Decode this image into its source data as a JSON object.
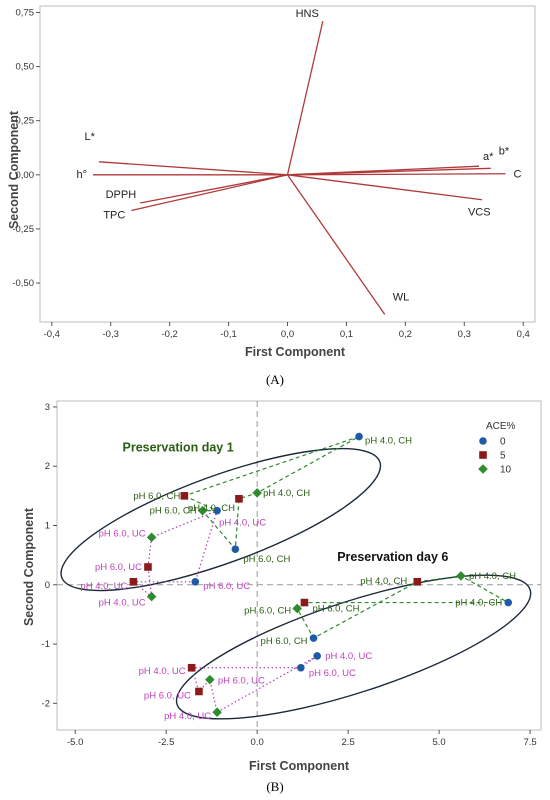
{
  "figure": {
    "caption_a": "(A)",
    "caption_b": "(B)"
  },
  "chart_data": [
    {
      "type": "line",
      "subtype": "biplot-loadings",
      "xlabel": "First Component",
      "ylabel": "Second Component",
      "xlim": [
        -0.42,
        0.42
      ],
      "ylim": [
        -0.68,
        0.78
      ],
      "xticks": [
        -0.4,
        -0.3,
        -0.2,
        -0.1,
        0.0,
        0.1,
        0.2,
        0.3,
        0.4
      ],
      "xtick_labels": [
        "-0,4",
        "-0,3",
        "-0,2",
        "-0,1",
        "0,0",
        "0,1",
        "0,2",
        "0,3",
        "0,4"
      ],
      "yticks": [
        -0.5,
        -0.25,
        0.0,
        0.25,
        0.5,
        0.75
      ],
      "ytick_labels": [
        "-0,50",
        "-0,25",
        "0,00",
        "0,25",
        "0,50",
        "0,75"
      ],
      "grid": false,
      "reference_lines": {
        "x": 0,
        "y": 0
      },
      "line_color": "#b03a3a",
      "vectors": [
        {
          "name": "HNS",
          "x": 0.06,
          "y": 0.71
        },
        {
          "name": "a*",
          "x": 0.325,
          "y": 0.04
        },
        {
          "name": "b*",
          "x": 0.345,
          "y": 0.03
        },
        {
          "name": "C",
          "x": 0.37,
          "y": 0.005
        },
        {
          "name": "VCS",
          "x": 0.33,
          "y": -0.115
        },
        {
          "name": "WL",
          "x": 0.165,
          "y": -0.645
        },
        {
          "name": "L*",
          "x": -0.32,
          "y": 0.06
        },
        {
          "name": "h°",
          "x": -0.33,
          "y": 0.0
        },
        {
          "name": "DPPH",
          "x": -0.25,
          "y": -0.13
        },
        {
          "name": "TPC",
          "x": -0.265,
          "y": -0.165
        }
      ]
    },
    {
      "type": "scatter",
      "xlabel": "First Component",
      "ylabel": "Second Component",
      "xlim": [
        -5.5,
        7.8
      ],
      "ylim": [
        -2.45,
        3.1
      ],
      "xticks": [
        -5.0,
        -2.5,
        0.0,
        2.5,
        5.0,
        7.5
      ],
      "xtick_labels": [
        "-5.0",
        "-2.5",
        "0.0",
        "2.5",
        "5.0",
        "7.5"
      ],
      "yticks": [
        -2,
        -1,
        0,
        1,
        2,
        3
      ],
      "ytick_labels": [
        "-2",
        "-1",
        "0",
        "1",
        "2",
        "3"
      ],
      "grid": false,
      "reference_lines": {
        "x": 0,
        "y": 0
      },
      "legend": {
        "title": "ACE%",
        "placement": "top-right"
      },
      "series": [
        {
          "name": "0",
          "color": "#1f5aa6",
          "marker": "circle"
        },
        {
          "name": "5",
          "color": "#8b1a1a",
          "marker": "square"
        },
        {
          "name": "10",
          "color": "#2e8b2e",
          "marker": "diamond"
        }
      ],
      "groups": [
        {
          "title": "Preservation day 1",
          "title_color": "#2a5e12",
          "ellipse": {
            "cx": -1.0,
            "cy": 1.1,
            "rx": 4.65,
            "ry": 1.2,
            "angle_deg": 20
          }
        },
        {
          "title": "Preservation day 6",
          "title_color": "#111111",
          "ellipse": {
            "cx": 2.65,
            "cy": -1.05,
            "rx": 5.1,
            "ry": 1.25,
            "angle_deg": 18
          }
        }
      ],
      "connection_styles": {
        "CH": {
          "color": "#2e8b2e",
          "dash": "dashed"
        },
        "UC": {
          "color": "#b040b0",
          "dash": "dotted"
        }
      },
      "points": [
        {
          "series": "0",
          "x": 2.8,
          "y": 2.5,
          "label": "pH 4.0, CH"
        },
        {
          "series": "0",
          "x": -0.6,
          "y": 0.6,
          "label": "pH 6.0, CH"
        },
        {
          "series": "0",
          "x": -1.1,
          "y": 1.25,
          "label": "pH 4.0, UC"
        },
        {
          "series": "0",
          "x": -1.7,
          "y": 0.05,
          "label": "pH 6.0, UC"
        },
        {
          "series": "5",
          "x": -2.0,
          "y": 1.5,
          "label": "pH 6.0, CH"
        },
        {
          "series": "5",
          "x": -0.5,
          "y": 1.45,
          "label": "pH 4.0, CH"
        },
        {
          "series": "5",
          "x": -3.0,
          "y": 0.3,
          "label": "pH 6.0, UC"
        },
        {
          "series": "5",
          "x": -3.4,
          "y": 0.05,
          "label": "pH 4.0, UC"
        },
        {
          "series": "10",
          "x": 0.0,
          "y": 1.55,
          "label": "pH 4.0, CH"
        },
        {
          "series": "10",
          "x": -1.5,
          "y": 1.25,
          "label": "pH 6.0, CH"
        },
        {
          "series": "10",
          "x": -2.9,
          "y": 0.8,
          "label": "pH 6.0, UC"
        },
        {
          "series": "10",
          "x": -2.9,
          "y": -0.2,
          "label": "pH 4.0, UC"
        },
        {
          "series": "5",
          "x": 4.4,
          "y": 0.05,
          "label": "pH 4.0, CH"
        },
        {
          "series": "10",
          "x": 5.6,
          "y": 0.15,
          "label": "pH 4.0, CH"
        },
        {
          "series": "0",
          "x": 6.9,
          "y": -0.3,
          "label": "pH 4.0, CH"
        },
        {
          "series": "5",
          "x": 1.3,
          "y": -0.3,
          "label": "pH 6.0, CH"
        },
        {
          "series": "10",
          "x": 1.1,
          "y": -0.4,
          "label": "pH 6.0, CH"
        },
        {
          "series": "0",
          "x": 1.55,
          "y": -0.9,
          "label": "pH 6.0, CH"
        },
        {
          "series": "0",
          "x": 1.65,
          "y": -1.2,
          "label": "pH 4.0, UC"
        },
        {
          "series": "0",
          "x": 1.2,
          "y": -1.4,
          "label": "pH 6.0, UC"
        },
        {
          "series": "5",
          "x": -1.8,
          "y": -1.4,
          "label": "pH 4.0, UC"
        },
        {
          "series": "5",
          "x": -1.6,
          "y": -1.8,
          "label": "pH 6.0, UC"
        },
        {
          "series": "10",
          "x": -1.3,
          "y": -1.6,
          "label": "pH 6.0, UC"
        },
        {
          "series": "10",
          "x": -1.1,
          "y": -2.15,
          "label": "pH 4.0, UC"
        }
      ],
      "connections": [
        {
          "style": "CH",
          "path": [
            4,
            2,
            9,
            1,
            5,
            8,
            0,
            4
          ]
        },
        {
          "style": "UC",
          "path": [
            6,
            10,
            2,
            3,
            7,
            11,
            6
          ]
        },
        {
          "style": "CH",
          "path": [
            12,
            13,
            14,
            15,
            16,
            17,
            12
          ]
        },
        {
          "style": "UC",
          "path": [
            18,
            19,
            20,
            21,
            22,
            23,
            18
          ]
        }
      ]
    }
  ]
}
